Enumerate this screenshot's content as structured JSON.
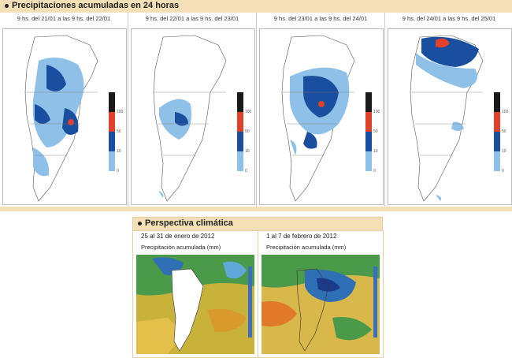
{
  "header": {
    "title": "Precipitaciones acumuladas en 24 horas"
  },
  "panels": [
    {
      "period": "9 hs. del 21/01 a las 9 hs. del 22/01"
    },
    {
      "period": "9 hs. del 22/01 a las 9 hs. del 23/01"
    },
    {
      "period": "9 hs. del 23/01 a las 9 hs. del 24/01"
    },
    {
      "period": "9 hs. del 24/01 a las 9 hs. del 25/01"
    }
  ],
  "legend": {
    "ticks": [
      "100",
      "50",
      "10",
      "0"
    ],
    "colors": [
      "#1a1a1a",
      "#e0412a",
      "#1a4fa0",
      "#8fc1e8"
    ]
  },
  "climate": {
    "title": "Perspectiva climática",
    "periods": [
      {
        "date": "25 al 31 de enero de 2012",
        "label": "Precipitación acumulada (mm)"
      },
      {
        "date": "1 al 7 de febrero de 2012",
        "label": "Precipitación acumulada (mm)"
      }
    ]
  }
}
